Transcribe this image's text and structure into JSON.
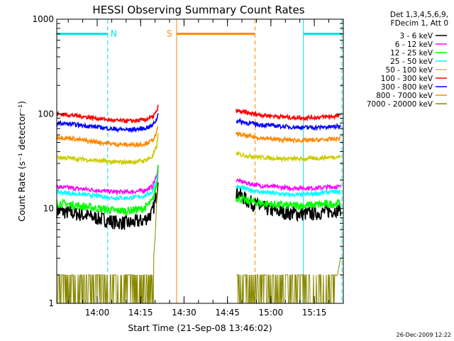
{
  "chart_data": {
    "type": "line",
    "title": "HESSI Observing Summary Count Rates",
    "xlabel": "Start Time (21-Sep-08 13:46:02)",
    "ylabel": "Count Rate (s⁻¹ detector⁻¹)",
    "xlim_minutes": [
      0,
      99
    ],
    "ylim": [
      1,
      1000
    ],
    "yscale": "log",
    "x_ticks": [
      "14:00",
      "14:15",
      "14:30",
      "14:45",
      "15:00",
      "15:15"
    ],
    "x_tick_minutes": [
      13.97,
      28.97,
      43.97,
      58.97,
      73.97,
      88.97
    ],
    "y_ticks": [
      "1",
      "10",
      "100",
      "1000"
    ],
    "y_tick_values": [
      1,
      10,
      100,
      1000
    ],
    "legend_header": [
      "Det 1,3,4,5,6,9,",
      "FDecim 1, Att 0"
    ],
    "legend_position": "right",
    "series": [
      {
        "name": "3 - 6 keV",
        "color": "#000000",
        "segments": [
          {
            "x": [
              0,
              5,
              10,
              15,
              20,
              25,
              30,
              33,
              34.5,
              35
            ],
            "y": [
              9.5,
              9,
              8.5,
              7.8,
              7.2,
              7,
              7.5,
              9,
              14,
              22
            ]
          },
          {
            "x": [
              62,
              66,
              70,
              75,
              80,
              85,
              90,
              95,
              98
            ],
            "y": [
              15,
              12,
              10.5,
              9.5,
              9,
              8.8,
              9,
              9.5,
              10
            ]
          }
        ]
      },
      {
        "name": "6 - 12 keV",
        "color": "#ff00ff",
        "segments": [
          {
            "x": [
              0,
              5,
              10,
              15,
              20,
              25,
              30,
              33,
              34.5,
              35
            ],
            "y": [
              17,
              16.5,
              16,
              15.5,
              15,
              15,
              15.5,
              17,
              22,
              28
            ]
          },
          {
            "x": [
              62,
              66,
              70,
              75,
              80,
              85,
              90,
              95,
              98
            ],
            "y": [
              20,
              18.5,
              17.5,
              17,
              16.5,
              16.5,
              16.5,
              17,
              17
            ]
          }
        ]
      },
      {
        "name": "12 - 25 keV",
        "color": "#00ff00",
        "segments": [
          {
            "x": [
              0,
              5,
              10,
              15,
              20,
              25,
              30,
              33,
              34.5,
              35
            ],
            "y": [
              11.5,
              11,
              10.5,
              10,
              9.5,
              9.5,
              10,
              12,
              18,
              28
            ]
          },
          {
            "x": [
              62,
              66,
              70,
              75,
              80,
              85,
              90,
              95,
              98
            ],
            "y": [
              13,
              12,
              11.5,
              11,
              10.8,
              10.8,
              11,
              11.2,
              11.5
            ]
          }
        ]
      },
      {
        "name": "25 - 50 keV",
        "color": "#00ffff",
        "segments": [
          {
            "x": [
              0,
              5,
              10,
              15,
              20,
              25,
              30,
              33,
              34.5,
              35
            ],
            "y": [
              15,
              14.5,
              14,
              13.5,
              13,
              13,
              13.5,
              15,
              20,
              26
            ]
          },
          {
            "x": [
              62,
              66,
              70,
              75,
              80,
              85,
              90,
              95,
              98
            ],
            "y": [
              17,
              16,
              15,
              14.5,
              14,
              14,
              14.5,
              15,
              15
            ]
          }
        ]
      },
      {
        "name": "50 - 100 keV",
        "color": "#cccc00",
        "segments": [
          {
            "x": [
              0,
              5,
              10,
              15,
              20,
              25,
              30,
              33,
              34.5,
              35
            ],
            "y": [
              35,
              34,
              33,
              32,
              31,
              31,
              32,
              35,
              45,
              60
            ]
          },
          {
            "x": [
              62,
              66,
              70,
              75,
              80,
              85,
              90,
              95,
              98
            ],
            "y": [
              38,
              36,
              35,
              34,
              33.5,
              33.5,
              34,
              35,
              35.5
            ]
          }
        ]
      },
      {
        "name": "100 - 300 keV",
        "color": "#ff0000",
        "segments": [
          {
            "x": [
              0,
              5,
              10,
              15,
              20,
              25,
              30,
              33,
              34.5,
              35
            ],
            "y": [
              100,
              97,
              93,
              89,
              85,
              84,
              86,
              92,
              105,
              120
            ]
          },
          {
            "x": [
              62,
              66,
              70,
              75,
              80,
              85,
              90,
              95,
              98
            ],
            "y": [
              108,
              102,
              98,
              95,
              92,
              91,
              92,
              94,
              95
            ]
          }
        ]
      },
      {
        "name": "300 - 800 keV",
        "color": "#0000ff",
        "segments": [
          {
            "x": [
              0,
              5,
              10,
              15,
              20,
              25,
              30,
              33,
              34.5,
              35
            ],
            "y": [
              80,
              78,
              75,
              72,
              69,
              68,
              70,
              75,
              88,
              100
            ]
          },
          {
            "x": [
              62,
              66,
              70,
              75,
              80,
              85,
              90,
              95,
              98
            ],
            "y": [
              85,
              80,
              77,
              75,
              73,
              72,
              72,
              73,
              74
            ]
          }
        ]
      },
      {
        "name": "800 - 7000 keV",
        "color": "#ff8800",
        "segments": [
          {
            "x": [
              0,
              5,
              10,
              15,
              20,
              25,
              30,
              33,
              34.5,
              35
            ],
            "y": [
              57,
              55,
              52,
              50,
              48,
              47,
              48,
              52,
              62,
              75
            ]
          },
          {
            "x": [
              62,
              66,
              70,
              75,
              80,
              85,
              90,
              95,
              98
            ],
            "y": [
              62,
              58,
              56,
              54,
              53,
              52.5,
              53,
              54,
              55
            ]
          }
        ]
      },
      {
        "name": "7000 - 20000 keV",
        "color": "#888800",
        "segments": [
          {
            "x": [
              0,
              13,
              26,
              33,
              34,
              34.5,
              35
            ],
            "y": [
              1.3,
              1.3,
              1.3,
              2,
              5,
              12,
              25
            ]
          },
          {
            "x": [
              62,
              75,
              88,
              97,
              98
            ],
            "y": [
              1.3,
              1.3,
              1.3,
              2,
              3
            ]
          }
        ]
      }
    ],
    "markers": [
      {
        "label": "N",
        "color": "#00e0e0",
        "bar_x": [
          0,
          17.6
        ],
        "line_x": [
          0,
          17.6
        ]
      },
      {
        "label": "S",
        "color": "#ff8800",
        "bar_x": [
          41.4,
          68.5
        ],
        "line_x": [
          41.4,
          68.5
        ]
      },
      {
        "label": "",
        "color": "#00e0e0",
        "bar_x": [
          85.2,
          98.5
        ],
        "line_x": [
          85.2,
          98.5
        ]
      }
    ],
    "bar_level": 700
  },
  "timestamp": "26-Dec-2009 12:22"
}
